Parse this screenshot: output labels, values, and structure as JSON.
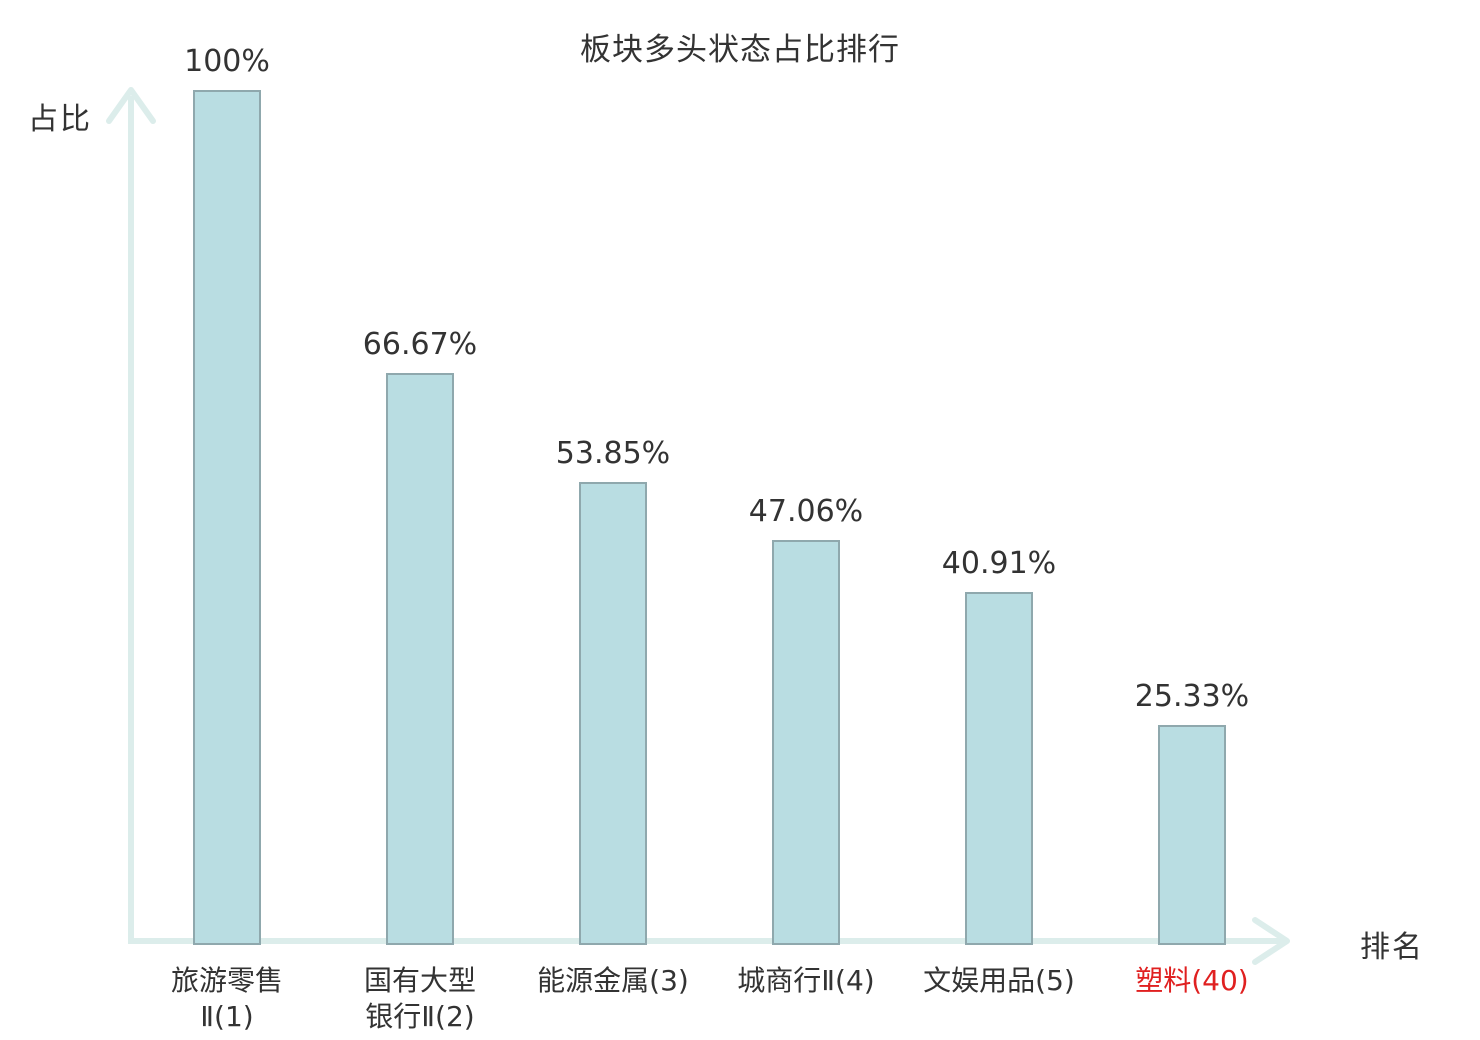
{
  "chart_data": {
    "type": "bar",
    "title": "板块多头状态占比排行",
    "xlabel": "排名",
    "ylabel": "占比",
    "ylim": [
      0,
      100
    ],
    "grid": false,
    "legend": "none",
    "categories": [
      "旅游零售Ⅱ(1)",
      "国有大型银行Ⅱ(2)",
      "能源金属(3)",
      "城商行Ⅱ(4)",
      "文娱用品(5)",
      "塑料(40)"
    ],
    "category_lines": [
      [
        "旅游零售",
        "Ⅱ(1)"
      ],
      [
        "国有大型",
        "银行Ⅱ(2)"
      ],
      [
        "能源金属(3)"
      ],
      [
        "城商行Ⅱ(4)"
      ],
      [
        "文娱用品(5)"
      ],
      [
        "塑料(40)"
      ]
    ],
    "values": [
      100,
      66.67,
      53.85,
      47.06,
      40.91,
      25.33
    ],
    "value_labels": [
      "100%",
      "66.67%",
      "53.85%",
      "47.06%",
      "40.91%",
      "25.33%"
    ],
    "highlighted_category_index": 5
  },
  "colors": {
    "bar_fill": "#b9dde2",
    "bar_border": "#8fa8ad",
    "axis": "#dcedeb",
    "text": "#333333",
    "highlight": "#e02020",
    "background": "#ffffff"
  }
}
